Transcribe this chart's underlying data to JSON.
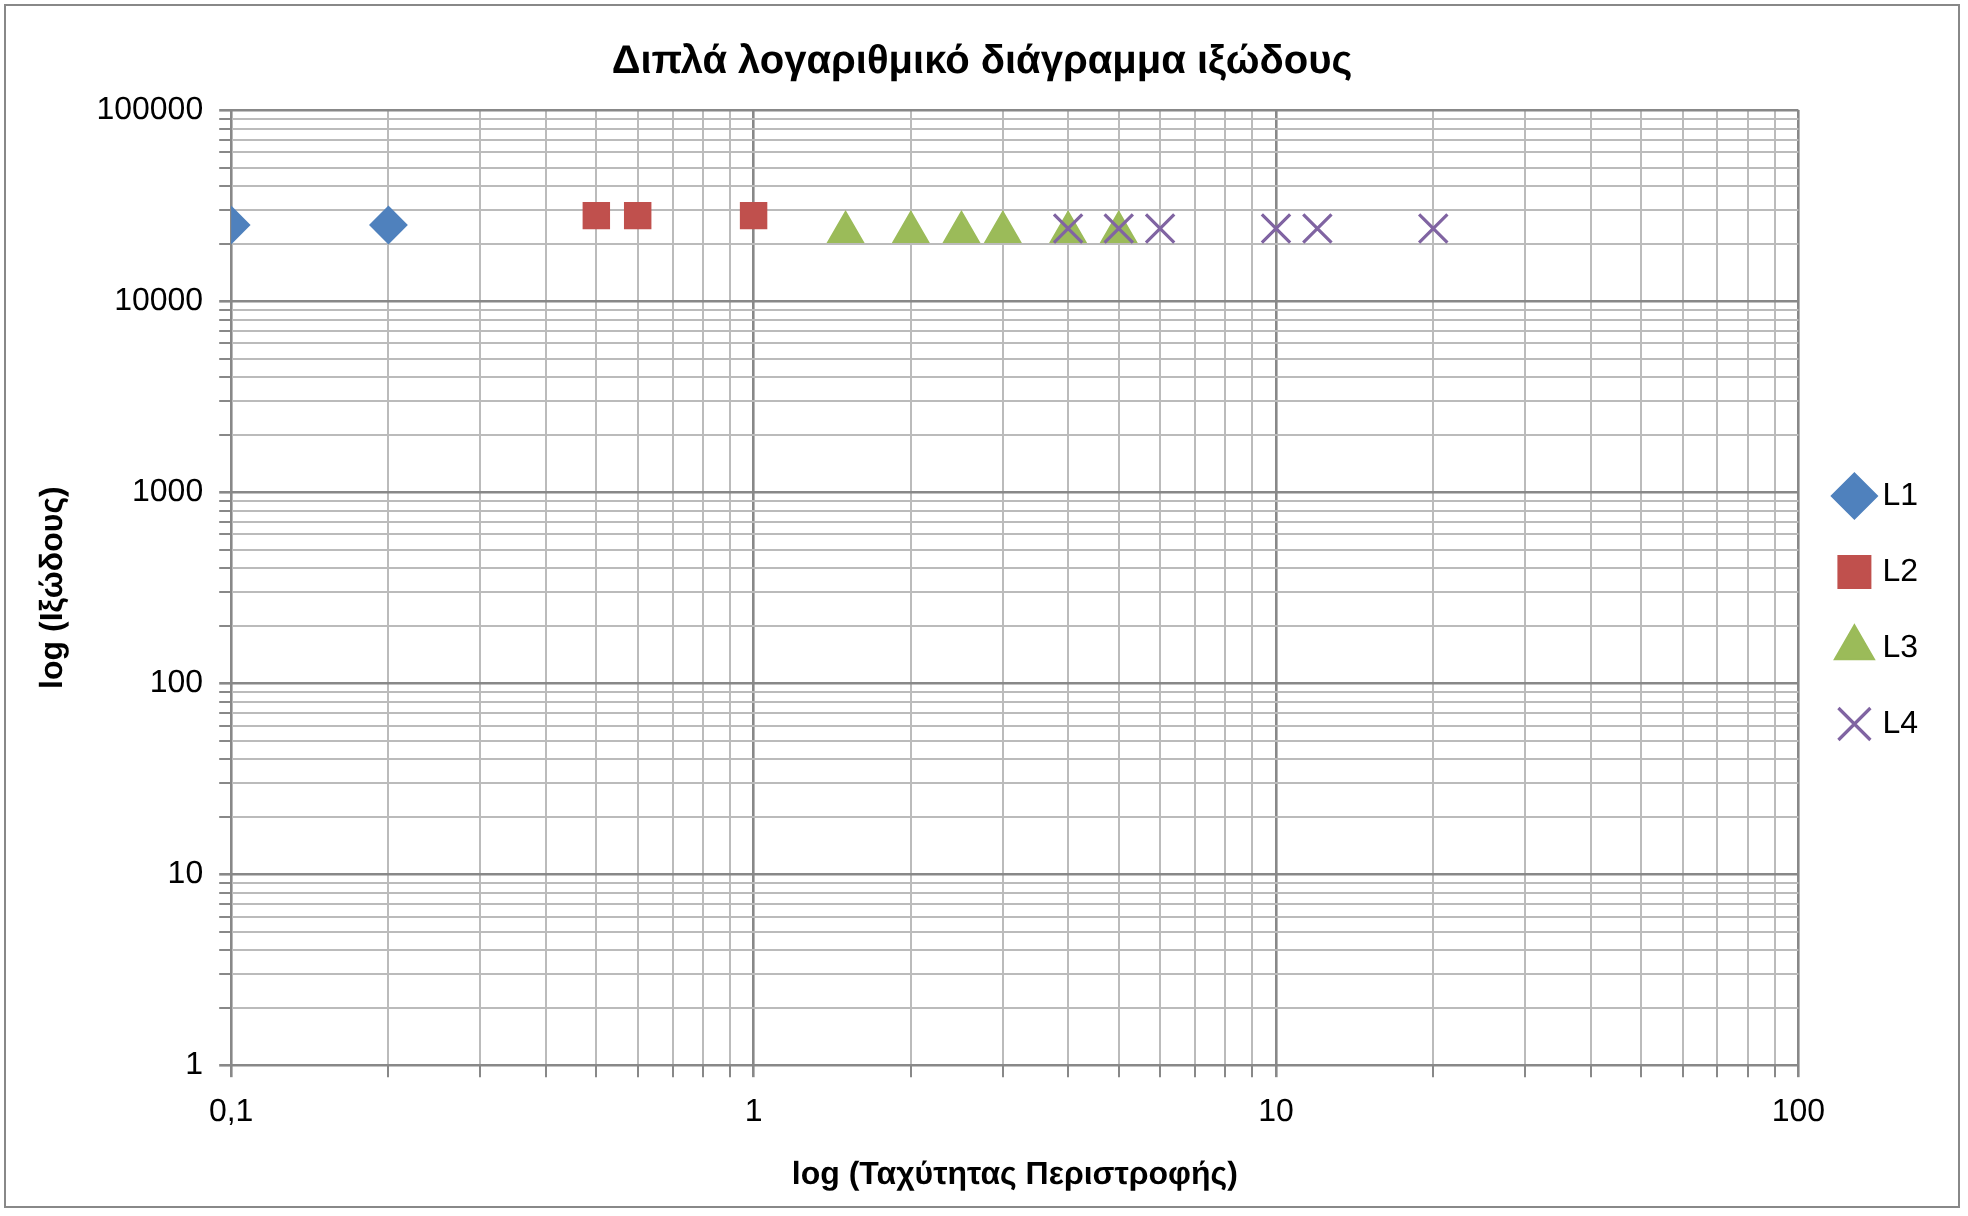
{
  "chart_data": {
    "type": "scatter",
    "title": "Διπλά λογαριθμικό διάγραμμα ιξώδους",
    "xlabel": "log (Ταχύτητας Περιστροφής)",
    "ylabel": "log (Ιξώδους)",
    "log": "xy",
    "grid": true,
    "legend": "right",
    "xlim": [
      0.1,
      100
    ],
    "xticks": [
      {
        "value": 0.1,
        "label": "0,1"
      },
      1,
      10,
      100
    ],
    "ylim": [
      1,
      100000
    ],
    "yticks": [
      1,
      10,
      100,
      1000,
      10000,
      100000
    ],
    "series": [
      {
        "name": "L1",
        "color": "#4f81bd",
        "marker": "diamond",
        "x": [
          0.1,
          0.2
        ],
        "values": [
          25000,
          25000
        ]
      },
      {
        "name": "L2",
        "color": "#c0504d",
        "marker": "square",
        "x": [
          0.5,
          0.6,
          1
        ],
        "values": [
          28000,
          28000,
          28000
        ]
      },
      {
        "name": "L3",
        "color": "#9bbb59",
        "marker": "triangle",
        "x": [
          1.5,
          2,
          2.5,
          3,
          4,
          5
        ],
        "values": [
          23000,
          23000,
          23000,
          23000,
          23000,
          23000
        ]
      },
      {
        "name": "L4",
        "color": "#8064a2",
        "marker": "cross",
        "x": [
          4,
          5,
          6,
          10,
          12,
          20
        ],
        "values": [
          24000,
          24000,
          24000,
          24000,
          24000,
          24000
        ]
      }
    ]
  }
}
